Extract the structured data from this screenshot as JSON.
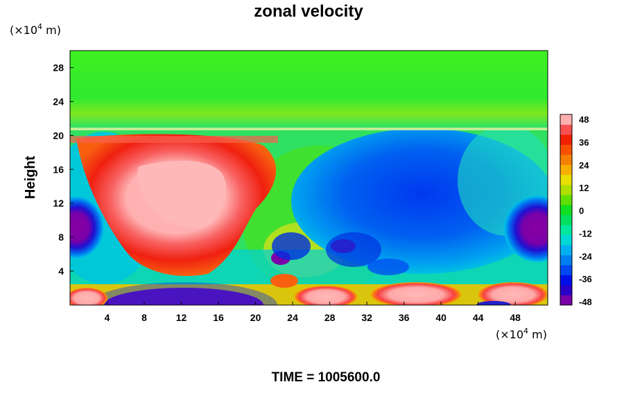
{
  "chart_data": {
    "type": "heatmap",
    "title": "zonal velocity",
    "ylabel": "Height",
    "x_unit_label": "(×10⁴ m)",
    "y_unit_label": "(×10⁴ m)",
    "xlim": [
      0,
      51.5
    ],
    "ylim": [
      0,
      30
    ],
    "x_ticks": [
      4,
      8,
      12,
      16,
      20,
      24,
      28,
      32,
      36,
      40,
      44,
      48
    ],
    "y_ticks": [
      4,
      8,
      12,
      16,
      20,
      24,
      28
    ],
    "colorbar": {
      "min": -48,
      "max": 48,
      "ticks": [
        48,
        36,
        24,
        12,
        0,
        -12,
        -24,
        -36,
        -48
      ],
      "colors": [
        "#7a00a8",
        "#2a00c8",
        "#0010e8",
        "#0048f0",
        "#0080f0",
        "#00b0f0",
        "#00d8d8",
        "#00e8a0",
        "#00e060",
        "#10e020",
        "#60e000",
        "#b0e000",
        "#e8e000",
        "#f8b000",
        "#f88000",
        "#f85000",
        "#f02000",
        "#f85050",
        "#ffb0b0"
      ]
    },
    "regions": [
      {
        "name": "upper layer",
        "x": [
          0,
          51.5
        ],
        "y": [
          20.3,
          30
        ],
        "value": -2
      },
      {
        "name": "jet core left",
        "x": [
          10,
          20
        ],
        "y": [
          8,
          20
        ],
        "value": 48
      },
      {
        "name": "jet right",
        "x": [
          26,
          51
        ],
        "y": [
          6,
          20
        ],
        "value": -36
      },
      {
        "name": "low left vortex",
        "x": [
          0,
          3
        ],
        "y": [
          7,
          12
        ],
        "value": -48
      },
      {
        "name": "low right vortex",
        "x": [
          46,
          51.5
        ],
        "y": [
          7,
          12
        ],
        "value": -48
      },
      {
        "name": "surface band",
        "x": [
          6,
          18
        ],
        "y": [
          0,
          1.8
        ],
        "value": -48
      },
      {
        "name": "surface band right",
        "x": [
          30,
          51
        ],
        "y": [
          0,
          3
        ],
        "value": 48
      }
    ],
    "grid": false
  },
  "time_label": "TIME = 1005600.0"
}
